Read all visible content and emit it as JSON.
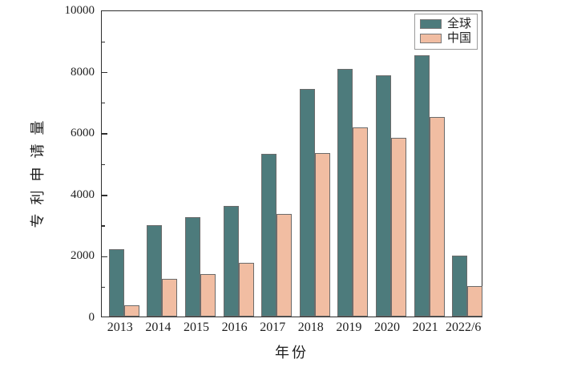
{
  "figure": {
    "background": "#ffffff",
    "axis_color": "#2e2e2e",
    "text_color": "#1f1f1f"
  },
  "chart_data": {
    "type": "bar",
    "title": "",
    "xlabel": "年份",
    "ylabel": "专利申请量",
    "categories": [
      "2013",
      "2014",
      "2015",
      "2016",
      "2017",
      "2018",
      "2019",
      "2020",
      "2021",
      "2022/6"
    ],
    "series": [
      {
        "name": "全球",
        "color": "#4d7b7c",
        "values": [
          2200,
          2975,
          3250,
          3600,
          5300,
          7425,
          8080,
          7860,
          8500,
          1975
        ]
      },
      {
        "name": "中国",
        "color": "#f1bda2",
        "values": [
          375,
          1225,
          1390,
          1750,
          3350,
          5330,
          6150,
          5830,
          6500,
          1000
        ]
      }
    ],
    "ylim": [
      0,
      10000
    ],
    "y_major_ticks": [
      0,
      2000,
      4000,
      6000,
      8000,
      10000
    ],
    "y_major_tick_labels": [
      "0",
      "2000",
      "4000",
      "6000",
      "8000",
      "10000"
    ],
    "y_minor_step": 1000,
    "grid": false,
    "legend_position": "top-right",
    "bar_edge_color": "#6b6b6b"
  }
}
